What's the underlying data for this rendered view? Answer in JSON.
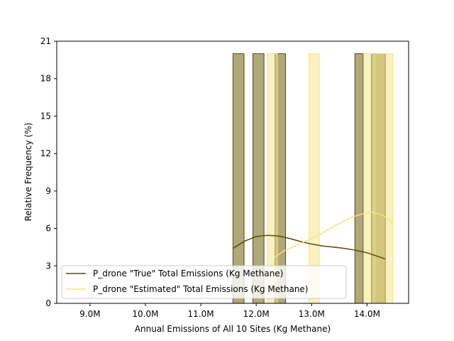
{
  "chart_data": {
    "type": "bar",
    "xlabel": "Annual Emissions of All 10 Sites (Kg Methane)",
    "ylabel": "Relative Frequency (%)",
    "xlim": [
      8400000,
      14750000
    ],
    "ylim": [
      0,
      21
    ],
    "xticks": [
      9000000,
      10000000,
      11000000,
      12000000,
      13000000,
      14000000
    ],
    "xtick_labels": [
      "9.0M",
      "10.0M",
      "11.0M",
      "12.0M",
      "13.0M",
      "14.0M"
    ],
    "yticks": [
      0,
      3,
      6,
      9,
      12,
      15,
      18,
      21
    ],
    "ytick_labels": [
      "0",
      "3",
      "6",
      "9",
      "12",
      "15",
      "18",
      "21"
    ],
    "grid": false,
    "legend_position": "lower-left",
    "colors": {
      "true_fill": "#b0a878",
      "true_edge": "#5a4a10",
      "true_line": "#5a4a10",
      "est_fill": "#fdf0b0",
      "est_edge": "#f5e390",
      "est_line": "#f5e382",
      "overlap_fill": "#d2c97f"
    },
    "series": [
      {
        "name": "P_drone \"True\" Total Emissions (Kg Methane)",
        "bins": [
          {
            "x0": 11580000,
            "x1": 11780000,
            "value": 20
          },
          {
            "x0": 11940000,
            "x1": 12140000,
            "value": 20
          },
          {
            "x0": 12340000,
            "x1": 12530000,
            "value": 20
          },
          {
            "x0": 13780000,
            "x1": 13930000,
            "value": 20
          },
          {
            "x0": 14080000,
            "x1": 14330000,
            "value": 20
          }
        ],
        "kde": {
          "x": [
            11580000,
            11800000,
            12000000,
            12200000,
            12400000,
            12600000,
            12800000,
            13000000,
            13200000,
            13400000,
            13600000,
            13800000,
            14000000,
            14200000,
            14330000
          ],
          "y": [
            4.4,
            5.0,
            5.35,
            5.45,
            5.4,
            5.2,
            4.95,
            4.75,
            4.6,
            4.5,
            4.4,
            4.25,
            4.05,
            3.75,
            3.55
          ]
        }
      },
      {
        "name": "P_drone \"Estimated\" Total Emissions (Kg Methane)",
        "bins": [
          {
            "x0": 12200000,
            "x1": 12380000,
            "value": 20
          },
          {
            "x0": 12950000,
            "x1": 13140000,
            "value": 20
          },
          {
            "x0": 13940000,
            "x1": 14120000,
            "value": 20
          },
          {
            "x0": 14140000,
            "x1": 14470000,
            "value": 20
          }
        ],
        "kde": {
          "x": [
            12330000,
            12500000,
            12700000,
            12900000,
            13100000,
            13300000,
            13500000,
            13700000,
            13900000,
            14000000,
            14100000,
            14200000,
            14300000,
            14400000,
            14470000
          ],
          "y": [
            3.7,
            4.2,
            4.6,
            5.0,
            5.4,
            5.9,
            6.4,
            6.85,
            7.15,
            7.25,
            7.3,
            7.2,
            7.0,
            6.7,
            6.4
          ]
        }
      }
    ],
    "baseline": {
      "x0": 8700000,
      "x1": 11580000,
      "value": 0
    }
  }
}
